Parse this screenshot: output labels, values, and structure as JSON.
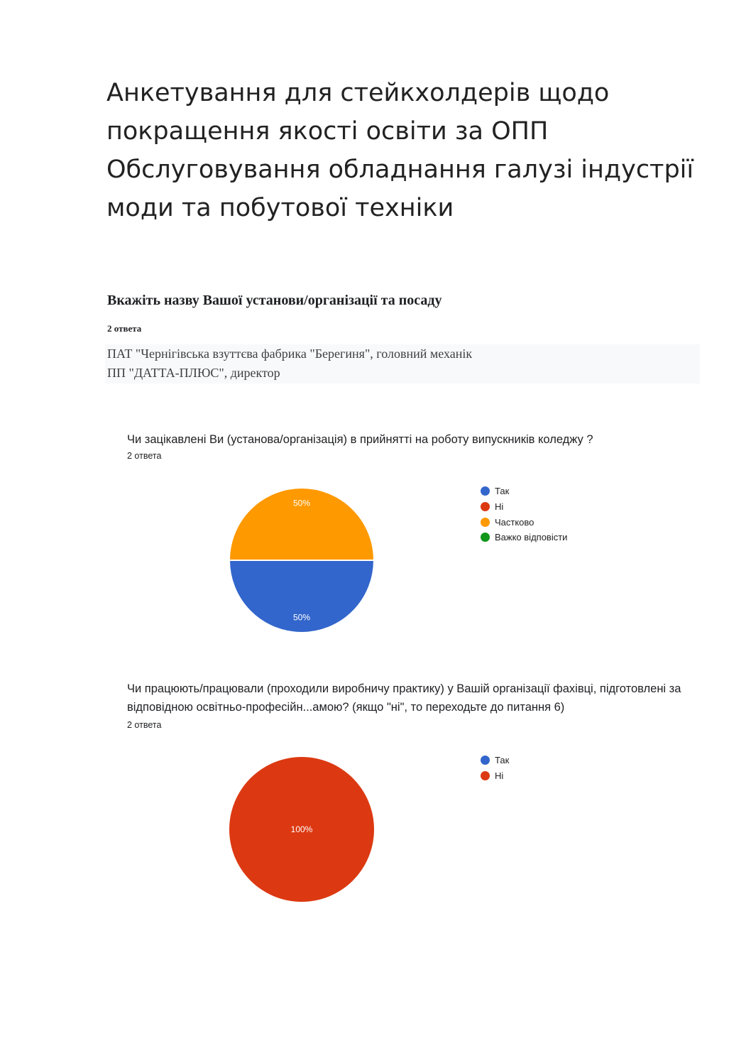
{
  "title": "Анкетування для стейкхолдерів щодо покращення якості освіти за ОПП Обслуговування обладнання галузі індустрії моди та побутової техніки",
  "questions": [
    {
      "heading": "Вкажіть назву Вашої установи/організації та посаду",
      "count": "2 ответа",
      "answers": [
        "ПАТ \"Чернігівська взуттєва фабрика \"Берегиня\", головний механік",
        "ПП \"ДАТТА-ПЛЮС\", директор"
      ]
    }
  ],
  "chart_data": [
    {
      "type": "pie",
      "title": "Чи зацікавлені Ви (установа/організація) в прийнятті на роботу випускників коледжу ?",
      "count": "2 ответа",
      "categories": [
        "Так",
        "Ні",
        "Частково",
        "Важко відповісти"
      ],
      "values": [
        50,
        0,
        50,
        0
      ],
      "colors": [
        "#3366cc",
        "#dc3912",
        "#ff9900",
        "#109618"
      ],
      "value_labels": [
        "50%",
        "",
        "50%",
        ""
      ],
      "legend_position": "right"
    },
    {
      "type": "pie",
      "title": "Чи працюють/працювали (проходили виробничу практику) у Вашій організації фахівці, підготовлені за відповідною освітньо-професійн...амою? (якщо \"ні\", то переходьте до питання 6)",
      "count": "2 ответа",
      "categories": [
        "Так",
        "Ні"
      ],
      "values": [
        0,
        100
      ],
      "colors": [
        "#3366cc",
        "#dc3912"
      ],
      "value_labels": [
        "",
        "100%"
      ],
      "legend_position": "right"
    }
  ]
}
